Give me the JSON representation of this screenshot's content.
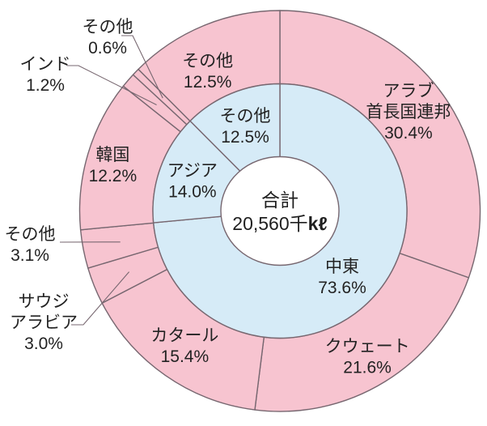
{
  "chart_data": {
    "type": "pie",
    "subtype": "nested-donut",
    "direction": "clockwise",
    "start_angle_deg": 0,
    "legend_position": "none",
    "center": {
      "line1": "合計",
      "line2": "20,560千kℓ",
      "line2_regular": "20,560千",
      "line2_bold": "kℓ",
      "total_value": 20560,
      "unit": "千kℓ"
    },
    "rings": [
      {
        "id": "inner",
        "color": "#D6EBF7",
        "slices": [
          {
            "label": "中東",
            "pct": 73.6,
            "display": [
              "中東",
              "73.6%"
            ]
          },
          {
            "label": "アジア",
            "pct": 14.0,
            "display": [
              "アジア",
              "14.0%"
            ]
          },
          {
            "label": "その他",
            "pct": 12.5,
            "display": [
              "その他",
              "12.5%"
            ]
          }
        ]
      },
      {
        "id": "outer",
        "color": "#F7C4D0",
        "slices": [
          {
            "label": "アラブ首長国連邦",
            "pct": 30.4,
            "display": [
              "アラブ",
              "首長国連邦",
              "30.4%"
            ]
          },
          {
            "label": "クウェート",
            "pct": 21.6,
            "display": [
              "クウェート",
              "21.6%"
            ]
          },
          {
            "label": "カタール",
            "pct": 15.4,
            "display": [
              "カタール",
              "15.4%"
            ]
          },
          {
            "label": "サウジアラビア",
            "pct": 3.0,
            "display": [
              "サウジ",
              "アラビア",
              "3.0%"
            ]
          },
          {
            "label": "その他",
            "pct": 3.1,
            "display": [
              "その他",
              "3.1%"
            ]
          },
          {
            "label": "韓国",
            "pct": 12.2,
            "display": [
              "韓国",
              "12.2%"
            ]
          },
          {
            "label": "インド",
            "pct": 1.2,
            "display": [
              "インド",
              "1.2%"
            ]
          },
          {
            "label": "その他",
            "pct": 0.6,
            "display": [
              "その他",
              "0.6%"
            ]
          },
          {
            "label": "その他",
            "pct": 12.5,
            "display": [
              "その他",
              "12.5%"
            ]
          }
        ]
      }
    ],
    "colors": {
      "inner_ring": "#D6EBF7",
      "outer_ring": "#F7C4D0",
      "hole": "#FFFFFF",
      "stroke": "#776770",
      "text": "#222222"
    }
  }
}
